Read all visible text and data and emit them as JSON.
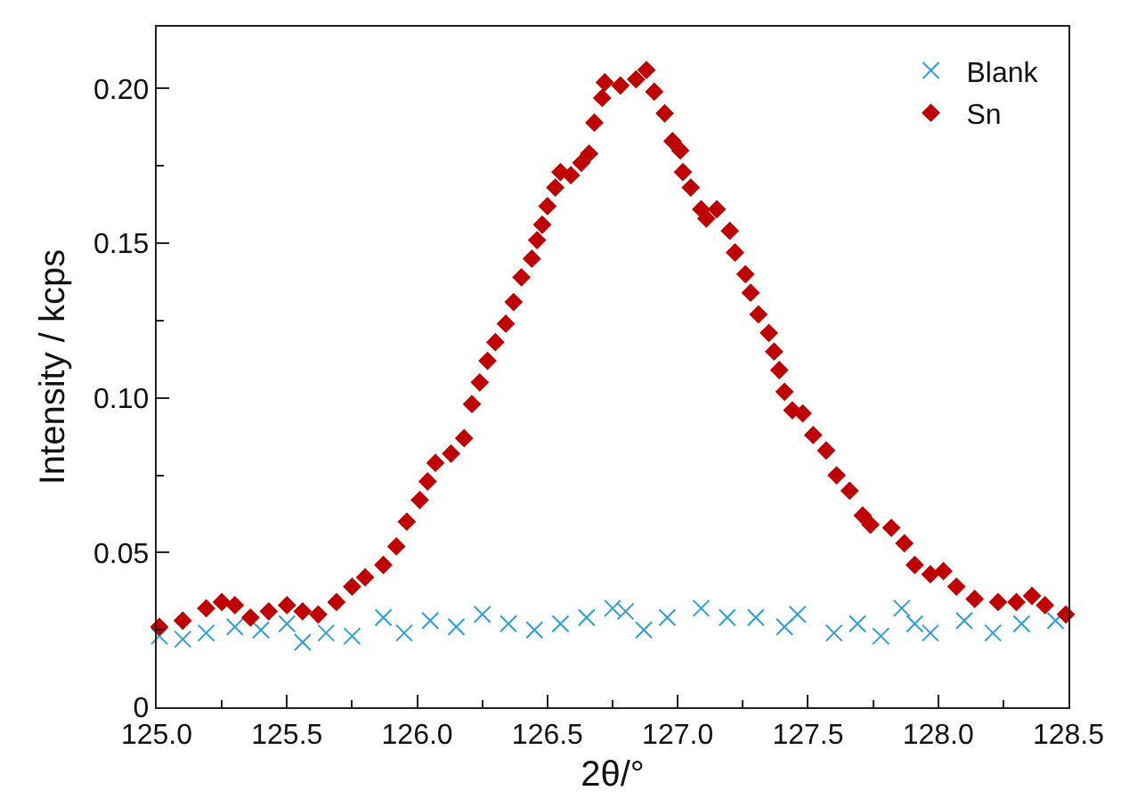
{
  "chart_data": {
    "type": "scatter",
    "xlabel": "2θ/°",
    "ylabel": "Intensity / kcps",
    "xlim": [
      125,
      128.5
    ],
    "xticks": [
      {
        "value": 125,
        "label": "125.0"
      },
      {
        "value": 125.5,
        "label": "125.5"
      },
      {
        "value": 126,
        "label": "126.0"
      },
      {
        "value": 126.5,
        "label": "126.5"
      },
      {
        "value": 127,
        "label": "127.0"
      },
      {
        "value": 127.5,
        "label": "127.5"
      },
      {
        "value": 128,
        "label": "128.0"
      },
      {
        "value": 128.5,
        "label": "128.5"
      }
    ],
    "ylim": [
      0,
      0.22
    ],
    "yticks": [
      0,
      {
        "value": 0.05,
        "label": "0.05"
      },
      {
        "value": 0.1,
        "label": "0.10"
      },
      {
        "value": 0.15,
        "label": "0.15"
      },
      {
        "value": 0.2,
        "label": "0.20"
      }
    ],
    "grid": false,
    "legend": "top right",
    "series": [
      {
        "name": "Blank",
        "color": "#2a9fd8",
        "marker": "cross",
        "x": [
          125.01,
          125.1,
          125.19,
          125.3,
          125.4,
          125.5,
          125.56,
          125.65,
          125.75,
          125.87,
          125.95,
          126.05,
          126.15,
          126.25,
          126.35,
          126.45,
          126.55,
          126.65,
          126.75,
          126.8,
          126.87,
          126.96,
          127.09,
          127.19,
          127.3,
          127.41,
          127.46,
          127.6,
          127.69,
          127.78,
          127.86,
          127.91,
          127.97,
          128.1,
          128.21,
          128.32,
          128.45
        ],
        "values": [
          0.023,
          0.022,
          0.024,
          0.026,
          0.025,
          0.027,
          0.021,
          0.024,
          0.023,
          0.029,
          0.024,
          0.028,
          0.026,
          0.03,
          0.027,
          0.025,
          0.027,
          0.029,
          0.032,
          0.031,
          0.025,
          0.029,
          0.032,
          0.029,
          0.029,
          0.026,
          0.03,
          0.024,
          0.027,
          0.023,
          0.032,
          0.027,
          0.024,
          0.028,
          0.024,
          0.027,
          0.028
        ]
      },
      {
        "name": "Sn",
        "color": "#c00000",
        "marker": "diamond",
        "x": [
          125.01,
          125.1,
          125.19,
          125.25,
          125.3,
          125.36,
          125.43,
          125.5,
          125.56,
          125.62,
          125.69,
          125.75,
          125.8,
          125.87,
          125.92,
          125.96,
          126.01,
          126.04,
          126.07,
          126.13,
          126.18,
          126.21,
          126.24,
          126.27,
          126.3,
          126.34,
          126.37,
          126.4,
          126.44,
          126.46,
          126.48,
          126.5,
          126.53,
          126.55,
          126.59,
          126.63,
          126.66,
          126.68,
          126.71,
          126.72,
          126.78,
          126.84,
          126.88,
          126.91,
          126.95,
          126.98,
          127.01,
          127.02,
          127.05,
          127.09,
          127.11,
          127.15,
          127.2,
          127.22,
          127.26,
          127.28,
          127.31,
          127.35,
          127.37,
          127.39,
          127.41,
          127.44,
          127.48,
          127.52,
          127.57,
          127.61,
          127.66,
          127.71,
          127.74,
          127.82,
          127.87,
          127.91,
          127.97,
          128.02,
          128.07,
          128.14,
          128.23,
          128.3,
          128.36,
          128.41,
          128.49
        ],
        "values": [
          0.026,
          0.028,
          0.032,
          0.034,
          0.033,
          0.029,
          0.031,
          0.033,
          0.031,
          0.03,
          0.034,
          0.039,
          0.042,
          0.046,
          0.052,
          0.06,
          0.067,
          0.073,
          0.079,
          0.082,
          0.087,
          0.098,
          0.105,
          0.112,
          0.118,
          0.124,
          0.131,
          0.139,
          0.145,
          0.151,
          0.156,
          0.162,
          0.168,
          0.173,
          0.172,
          0.176,
          0.179,
          0.189,
          0.197,
          0.202,
          0.201,
          0.203,
          0.206,
          0.199,
          0.192,
          0.183,
          0.18,
          0.173,
          0.168,
          0.161,
          0.158,
          0.161,
          0.154,
          0.147,
          0.14,
          0.134,
          0.127,
          0.121,
          0.115,
          0.109,
          0.102,
          0.096,
          0.095,
          0.088,
          0.083,
          0.075,
          0.07,
          0.062,
          0.059,
          0.058,
          0.053,
          0.046,
          0.043,
          0.044,
          0.039,
          0.035,
          0.034,
          0.034,
          0.036,
          0.033,
          0.03
        ]
      }
    ]
  }
}
